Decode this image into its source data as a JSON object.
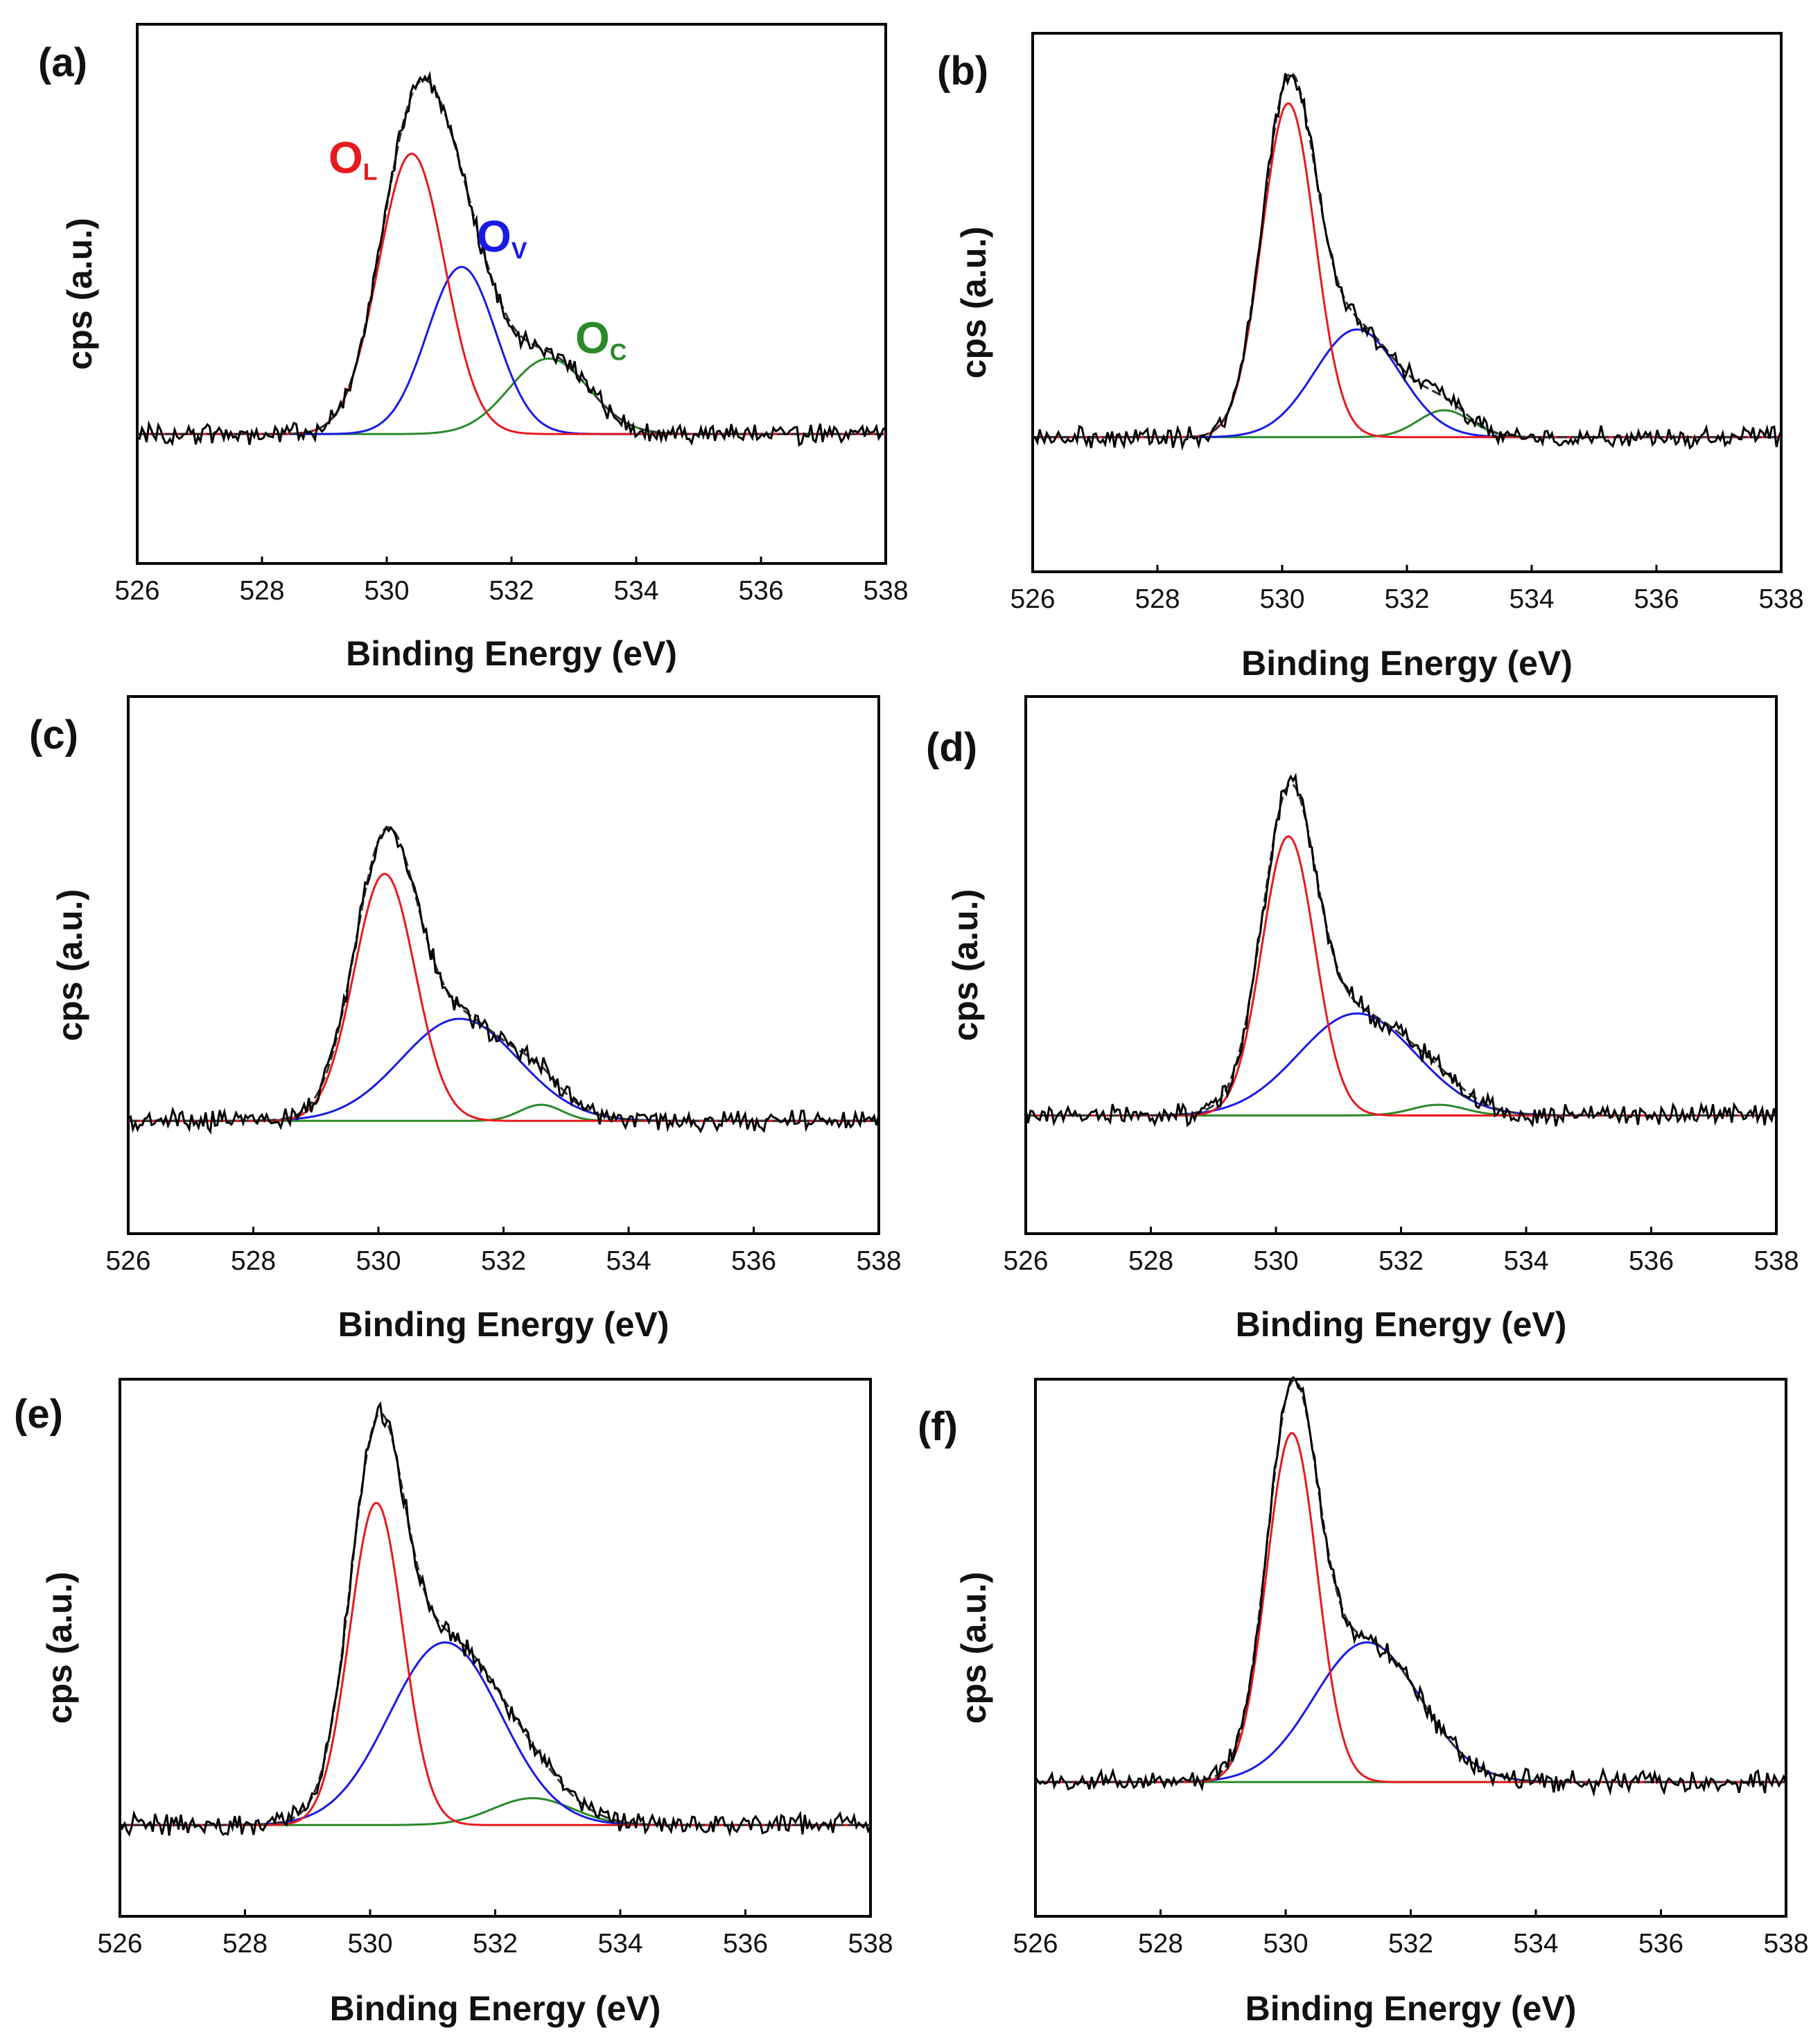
{
  "figure": {
    "xlabel": "Binding Energy (eV)",
    "ylabel": "cps (a.u.)",
    "colors": {
      "measured": "#000000",
      "envelope": "#333333",
      "lattice_oxygen": "#e8191f",
      "oxygen_vacancy": "#1a1ae6",
      "chemisorbed_oxygen": "#2a8a2a"
    }
  },
  "chart_data": [
    {
      "type": "line",
      "panel": "(a)",
      "xlim": [
        526,
        538
      ],
      "xticks": [
        526,
        528,
        530,
        532,
        534,
        536,
        538
      ],
      "baseline": 0.24,
      "peaks": [
        {
          "name": "O_L",
          "center": 530.4,
          "height": 0.52,
          "fwhm": 1.25
        },
        {
          "name": "O_V",
          "center": 531.2,
          "height": 0.31,
          "fwhm": 1.3
        },
        {
          "name": "O_C",
          "center": 532.6,
          "height": 0.14,
          "fwhm": 1.5
        }
      ],
      "peak_labels": [
        {
          "main": "O",
          "sub": "L",
          "color": "lattice_oxygen"
        },
        {
          "main": "O",
          "sub": "V",
          "color": "oxygen_vacancy"
        },
        {
          "main": "O",
          "sub": "C",
          "color": "chemisorbed_oxygen"
        }
      ]
    },
    {
      "type": "line",
      "panel": "(b)",
      "xlim": [
        526,
        538
      ],
      "xticks": [
        526,
        528,
        530,
        532,
        534,
        536,
        538
      ],
      "baseline": 0.25,
      "peaks": [
        {
          "name": "O_L",
          "center": 530.1,
          "height": 0.62,
          "fwhm": 1.0
        },
        {
          "name": "O_V",
          "center": 531.2,
          "height": 0.2,
          "fwhm": 1.6
        },
        {
          "name": "O_C",
          "center": 532.6,
          "height": 0.05,
          "fwhm": 1.0
        }
      ]
    },
    {
      "type": "line",
      "panel": "(c)",
      "xlim": [
        526,
        538
      ],
      "xticks": [
        526,
        528,
        530,
        532,
        534,
        536,
        538
      ],
      "baseline": 0.21,
      "peaks": [
        {
          "name": "O_L",
          "center": 530.1,
          "height": 0.46,
          "fwhm": 1.15
        },
        {
          "name": "O_V",
          "center": 531.3,
          "height": 0.19,
          "fwhm": 2.2
        },
        {
          "name": "O_C",
          "center": 532.6,
          "height": 0.03,
          "fwhm": 0.8
        }
      ]
    },
    {
      "type": "line",
      "panel": "(d)",
      "xlim": [
        526,
        538
      ],
      "xticks": [
        526,
        528,
        530,
        532,
        534,
        536,
        538
      ],
      "baseline": 0.22,
      "peaks": [
        {
          "name": "O_L",
          "center": 530.2,
          "height": 0.52,
          "fwhm": 1.0
        },
        {
          "name": "O_V",
          "center": 531.3,
          "height": 0.19,
          "fwhm": 2.2
        },
        {
          "name": "O_C",
          "center": 532.6,
          "height": 0.02,
          "fwhm": 1.0
        }
      ]
    },
    {
      "type": "line",
      "panel": "(e)",
      "xlim": [
        526,
        538
      ],
      "xticks": [
        526,
        528,
        530,
        532,
        534,
        536,
        538
      ],
      "baseline": 0.17,
      "peaks": [
        {
          "name": "O_L",
          "center": 530.1,
          "height": 0.6,
          "fwhm": 1.0
        },
        {
          "name": "O_V",
          "center": 531.2,
          "height": 0.34,
          "fwhm": 2.1
        },
        {
          "name": "O_C",
          "center": 532.6,
          "height": 0.05,
          "fwhm": 1.5
        }
      ]
    },
    {
      "type": "line",
      "panel": "(f)",
      "xlim": [
        526,
        538
      ],
      "xticks": [
        526,
        528,
        530,
        532,
        534,
        536,
        538
      ],
      "baseline": 0.25,
      "peaks": [
        {
          "name": "O_L",
          "center": 530.1,
          "height": 0.65,
          "fwhm": 0.95
        },
        {
          "name": "O_V",
          "center": 531.3,
          "height": 0.26,
          "fwhm": 2.0
        },
        {
          "name": "O_C",
          "center": 532.6,
          "height": 0.0,
          "fwhm": 1.0
        }
      ]
    }
  ]
}
